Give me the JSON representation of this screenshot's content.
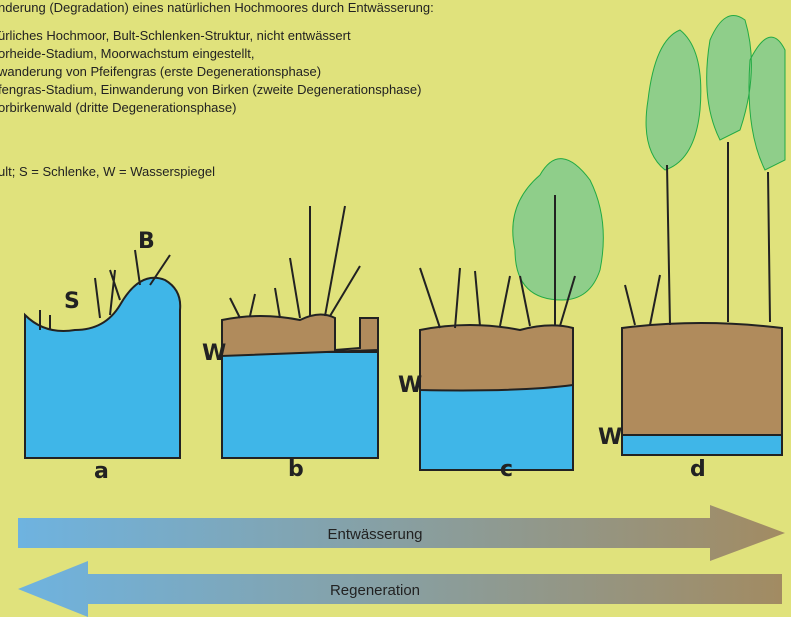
{
  "header": {
    "title": "nderung (Degradation) eines natürlichen Hochmoores durch Entwässerung:"
  },
  "legend": {
    "lines": [
      "ürliches Hochmoor, Bult-Schlenken-Struktur,  nicht entwässert",
      "orheide-Stadium, Moorwachstum eingestellt,",
      "wanderung von Pfeifengras (erste Degenerationsphase)",
      "fengras-Stadium, Einwanderung von Birken (zweite Degenerationsphase)",
      "orbirkenwald (dritte Degenerationsphase)"
    ],
    "abbreviations": "ult;  S = Schlenke,  W = Wasserspiegel"
  },
  "panels": [
    {
      "label": "a",
      "markers": [
        "B",
        "S"
      ]
    },
    {
      "label": "b",
      "markers": [
        "W"
      ]
    },
    {
      "label": "c",
      "markers": [
        "W"
      ]
    },
    {
      "label": "d",
      "markers": [
        "W"
      ]
    }
  ],
  "arrows": {
    "forward": "Entwässerung",
    "backward": "Regeneration"
  }
}
